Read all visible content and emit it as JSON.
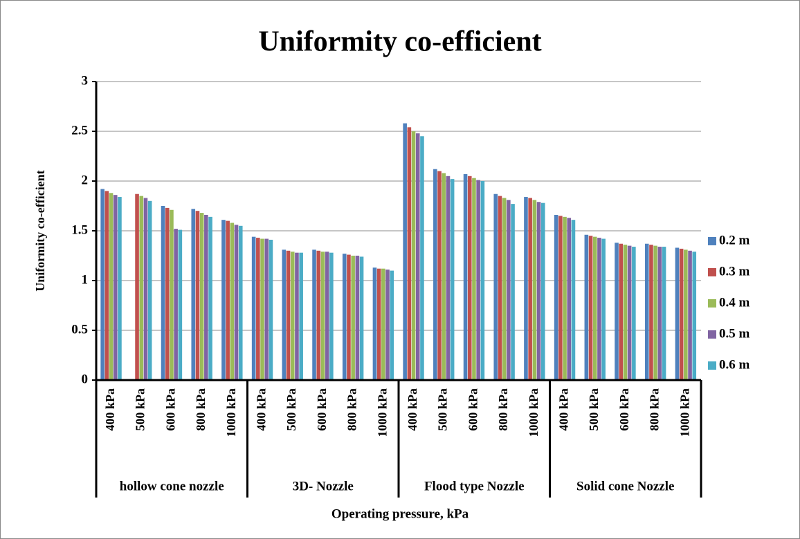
{
  "chart_data": {
    "type": "bar",
    "title": "Uniformity co-efficient",
    "y_label": "Uniformity co-efficient",
    "x_label": "Operating pressure, kPa",
    "categories": [
      "400 kPa",
      "500 kPa",
      "600 kPa",
      "800 kPa",
      "1000 kPa",
      "400 kPa",
      "500 kPa",
      "600 kPa",
      "800 kPa",
      "1000 kPa",
      "400 kPa",
      "500 kPa",
      "600 kPa",
      "800 kPa",
      "1000 kPa",
      "400 kPa",
      "500 kPa",
      "600 kPa",
      "800 kPa",
      "1000 kPa"
    ],
    "groups": [
      "hollow cone nozzle",
      "3D- Nozzle",
      "Flood type Nozzle",
      "Solid cone Nozzle"
    ],
    "series": [
      {
        "name": "0.2 m",
        "color": "#4f81bd",
        "values": [
          1.92,
          null,
          1.75,
          1.72,
          1.61,
          1.44,
          1.31,
          1.31,
          1.27,
          1.13,
          2.58,
          2.12,
          2.07,
          1.87,
          1.84,
          1.66,
          1.46,
          1.38,
          1.37,
          1.33
        ]
      },
      {
        "name": "0.3 m",
        "color": "#c0504d",
        "values": [
          1.9,
          1.87,
          1.73,
          1.7,
          1.6,
          1.43,
          1.3,
          1.3,
          1.26,
          1.12,
          2.54,
          2.1,
          2.05,
          1.85,
          1.83,
          1.65,
          1.45,
          1.37,
          1.36,
          1.32
        ]
      },
      {
        "name": "0.4 m",
        "color": "#9bbb59",
        "values": [
          1.88,
          1.85,
          1.71,
          1.68,
          1.58,
          1.42,
          1.29,
          1.29,
          1.25,
          1.12,
          2.5,
          2.08,
          2.03,
          1.83,
          1.81,
          1.64,
          1.44,
          1.36,
          1.35,
          1.31
        ]
      },
      {
        "name": "0.5 m",
        "color": "#8064a2",
        "values": [
          1.86,
          1.83,
          1.52,
          1.66,
          1.56,
          1.42,
          1.28,
          1.29,
          1.25,
          1.11,
          2.48,
          2.05,
          2.01,
          1.81,
          1.79,
          1.63,
          1.43,
          1.35,
          1.34,
          1.3
        ]
      },
      {
        "name": "0.6 m",
        "color": "#4bacc6",
        "values": [
          1.84,
          1.8,
          1.51,
          1.64,
          1.55,
          1.41,
          1.28,
          1.28,
          1.24,
          1.1,
          2.45,
          2.02,
          2.0,
          1.77,
          1.78,
          1.61,
          1.42,
          1.34,
          1.34,
          1.29
        ]
      }
    ],
    "ylim": [
      0,
      3
    ],
    "yticks": [
      0,
      0.5,
      1,
      1.5,
      2,
      2.5,
      3
    ],
    "grid": true,
    "legend": "right"
  }
}
